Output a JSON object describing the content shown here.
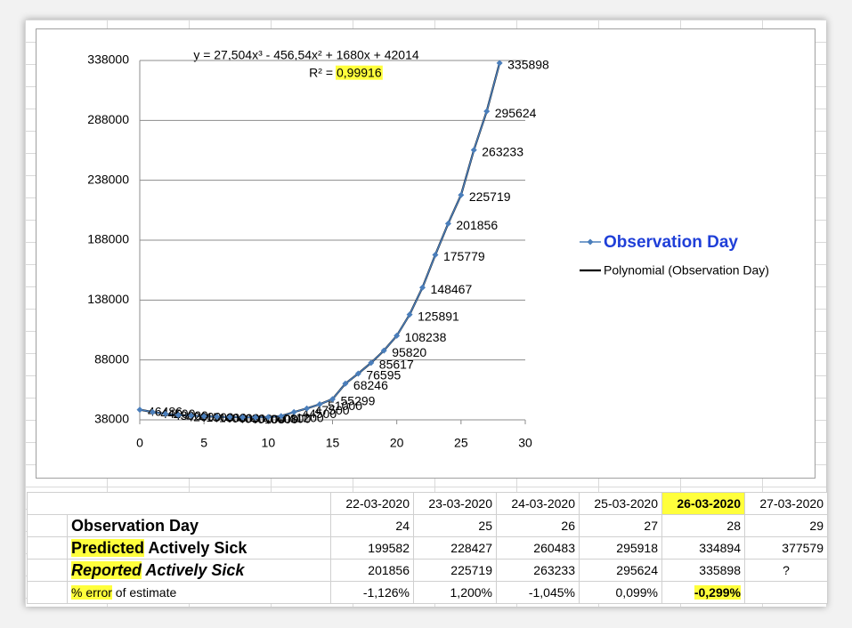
{
  "chart_data": {
    "type": "scatter-line",
    "equation": "y = 27,504x³ - 456,54x² + 1680x + 42014",
    "r2_label": "R² =",
    "r2_value": "0,99916",
    "x": [
      0,
      1,
      2,
      3,
      4,
      5,
      6,
      7,
      8,
      9,
      10,
      11,
      12,
      13,
      14,
      15,
      16,
      17,
      18,
      19,
      20,
      21,
      22,
      23,
      24,
      25,
      26,
      27,
      28
    ],
    "series": [
      {
        "name": "Observation Day",
        "color": "#4a7ebb",
        "values": [
          46486,
          44500,
          43000,
          42000,
          41500,
          41000,
          40600,
          40300,
          40100,
          40000,
          40300,
          41200,
          44500,
          47500,
          51000,
          55299,
          68246,
          76595,
          85617,
          95820,
          108238,
          125891,
          148467,
          175779,
          201856,
          225719,
          263233,
          295624,
          335898
        ]
      }
    ],
    "trendline": {
      "name": "Polynomial (Observation Day)",
      "color": "#000000"
    },
    "xlim": [
      0,
      30
    ],
    "xticks": [
      0,
      5,
      10,
      15,
      20,
      25,
      30
    ],
    "ylim": [
      38000,
      338000
    ],
    "yticks": [
      38000,
      88000,
      138000,
      188000,
      238000,
      288000,
      338000
    ],
    "grid": true,
    "legend": "right"
  },
  "table": {
    "dates": [
      "22-03-2020",
      "23-03-2020",
      "24-03-2020",
      "25-03-2020",
      "26-03-2020",
      "27-03-2020"
    ],
    "rows": [
      {
        "label": [
          "Observation Day"
        ],
        "values": [
          24,
          25,
          26,
          27,
          28,
          29
        ]
      },
      {
        "label": [
          "Predicted",
          "Actively Sick"
        ],
        "values": [
          199582,
          228427,
          260483,
          295918,
          334894,
          377579
        ]
      },
      {
        "label": [
          "Reported",
          "Actively Sick"
        ],
        "values": [
          201856,
          225719,
          263233,
          295624,
          335898,
          "?"
        ]
      },
      {
        "label": [
          "% error",
          "of estimate"
        ],
        "values": [
          "-1,126%",
          "1,200%",
          "-1,045%",
          "0,099%",
          "-0,299%"
        ]
      }
    ]
  }
}
